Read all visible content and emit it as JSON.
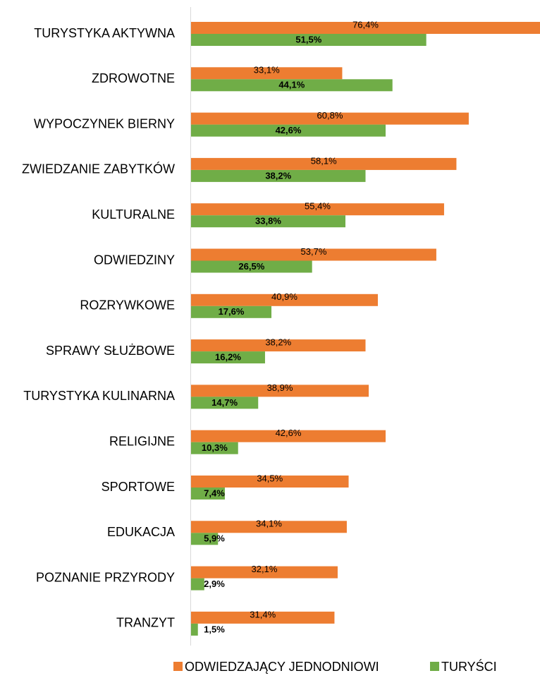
{
  "chart_data": {
    "type": "hbar",
    "categories": [
      "TURYSTYKA AKTYWNA",
      "ZDROWOTNE",
      "WYPOCZYNEK BIERNY",
      "ZWIEDZANIE ZABYTKÓW",
      "KULTURALNE",
      "ODWIEDZINY",
      "ROZRYWKOWE",
      "SPRAWY SŁUŻBOWE",
      "TURYSTYKA KULINARNA",
      "RELIGIJNE",
      "SPORTOWE",
      "EDUKACJA",
      "POZNANIE PRZYRODY",
      "TRANZYT"
    ],
    "series": [
      {
        "name": "ODWIEDZAJĄCY JEDNODNIOWI",
        "color": "#ed7d31",
        "values": [
          76.4,
          33.1,
          60.8,
          58.1,
          55.4,
          53.7,
          40.9,
          38.2,
          38.9,
          42.6,
          34.5,
          34.1,
          32.1,
          31.4
        ],
        "value_labels": [
          "76,4%",
          "33,1%",
          "60,8%",
          "58,1%",
          "55,4%",
          "53,7%",
          "40,9%",
          "38,2%",
          "38,9%",
          "42,6%",
          "34,5%",
          "34,1%",
          "32,1%",
          "31,4%"
        ]
      },
      {
        "name": "TURYŚCI",
        "color": "#70ad47",
        "values": [
          51.5,
          44.1,
          42.6,
          38.2,
          33.8,
          26.5,
          17.6,
          16.2,
          14.7,
          10.3,
          7.4,
          5.9,
          2.9,
          1.5
        ],
        "value_labels": [
          "51,5%",
          "44,1%",
          "42,6%",
          "38,2%",
          "33,8%",
          "26,5%",
          "17,6%",
          "16,2%",
          "14,7%",
          "10,3%",
          "7,4%",
          "5,9%",
          "2,9%",
          "1,5%"
        ]
      }
    ]
  }
}
